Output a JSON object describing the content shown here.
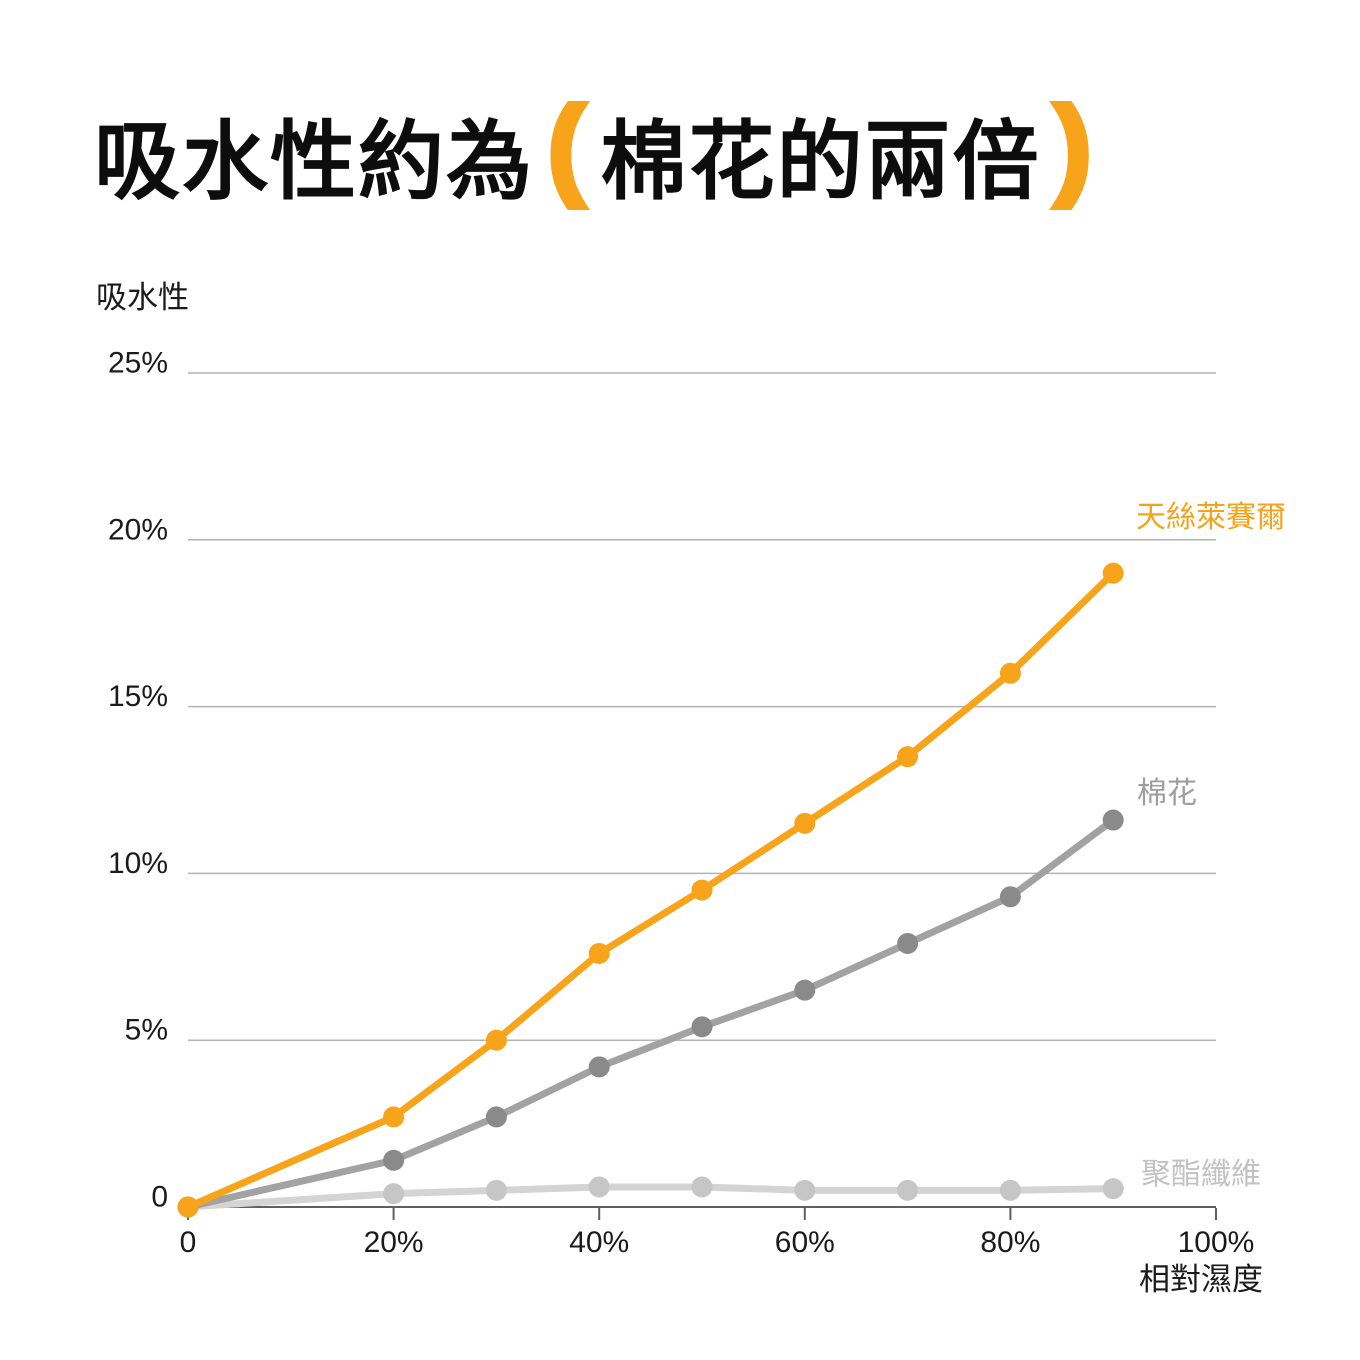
{
  "title": {
    "prefix": "吸水性約為",
    "paren_open": "(",
    "highlight": "棉花的兩倍",
    "paren_close": ")",
    "accent_color": "#F7A41B",
    "text_color": "#0D0D0D"
  },
  "axes": {
    "grid_color": "#B3B3B3",
    "axis_color": "#5F5F5F",
    "tick_label_color": "#1B1B1B"
  },
  "chart_data": {
    "type": "line",
    "title": "吸水性約為（棉花的兩倍）",
    "xlabel": "相對濕度",
    "ylabel": "吸水性",
    "xlim": [
      0,
      100
    ],
    "ylim": [
      0,
      25
    ],
    "grid": "horizontal-only",
    "legend_position": "right-end-of-each-line",
    "x": [
      0,
      20,
      30,
      40,
      50,
      60,
      70,
      80,
      90
    ],
    "series": [
      {
        "name": "天絲萊賽爾",
        "line_color": "#F7A41B",
        "marker_color": "#F7A41B",
        "label_color": "#F5A31A",
        "values": [
          0,
          2.7,
          5.0,
          7.6,
          9.5,
          11.5,
          13.5,
          16.0,
          19.0
        ]
      },
      {
        "name": "棉花",
        "line_color": "#A2A2A2",
        "marker_color": "#8A8A8A",
        "label_color": "#9E9E9E",
        "values": [
          0,
          1.4,
          2.7,
          4.2,
          5.4,
          6.5,
          7.9,
          9.3,
          11.6
        ]
      },
      {
        "name": "聚酯纖維",
        "line_color": "#D4D4D4",
        "marker_color": "#C6C6C6",
        "label_color": "#C2C2C2",
        "values": [
          0,
          0.4,
          0.5,
          0.6,
          0.6,
          0.5,
          0.5,
          0.5,
          0.55
        ]
      }
    ],
    "x_ticks": [
      {
        "value": 0,
        "label": "0"
      },
      {
        "value": 20,
        "label": "20%"
      },
      {
        "value": 40,
        "label": "40%"
      },
      {
        "value": 60,
        "label": "60%"
      },
      {
        "value": 80,
        "label": "80%"
      },
      {
        "value": 100,
        "label": "100%"
      }
    ],
    "y_ticks": [
      {
        "value": 0,
        "label": "0"
      },
      {
        "value": 5,
        "label": "5%"
      },
      {
        "value": 10,
        "label": "10%"
      },
      {
        "value": 15,
        "label": "15%"
      },
      {
        "value": 20,
        "label": "20%"
      },
      {
        "value": 25,
        "label": "25%"
      }
    ]
  }
}
